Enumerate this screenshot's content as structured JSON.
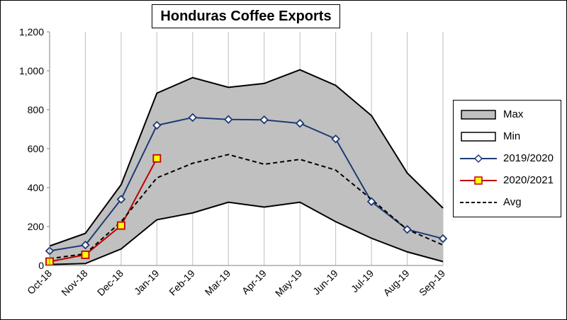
{
  "chart_data": {
    "type": "line",
    "title": "Honduras Coffee Exports",
    "categories": [
      "Oct-18",
      "Nov-18",
      "Dec-18",
      "Jan-19",
      "Feb-19",
      "Mar-19",
      "Apr-19",
      "May-19",
      "Jun-19",
      "Jul-19",
      "Aug-19",
      "Sep-19"
    ],
    "ylim": [
      0,
      1200
    ],
    "yticks": [
      0,
      200,
      400,
      600,
      800,
      1000,
      1200
    ],
    "ytick_labels": [
      "0",
      "200",
      "400",
      "600",
      "800",
      "1,000",
      "1,200"
    ],
    "grid": "vertical",
    "legend_position": "right",
    "band": {
      "max": {
        "name": "Max",
        "values": [
          100,
          165,
          415,
          885,
          965,
          915,
          935,
          1005,
          925,
          770,
          475,
          295
        ]
      },
      "min": {
        "name": "Min",
        "values": [
          5,
          10,
          85,
          235,
          270,
          325,
          300,
          325,
          225,
          140,
          70,
          20
        ]
      },
      "fill_color": "#c0c0c0"
    },
    "series": [
      {
        "name": "2019/2020",
        "style": "line-diamond",
        "color": "#1f3a73",
        "values": [
          75,
          105,
          340,
          720,
          760,
          750,
          748,
          730,
          650,
          328,
          185,
          138
        ]
      },
      {
        "name": "2020/2021",
        "style": "line-square",
        "color": "#c00000",
        "marker_fill": "#ffff00",
        "values": [
          20,
          55,
          205,
          550,
          null,
          null,
          null,
          null,
          null,
          null,
          null,
          null
        ]
      },
      {
        "name": "Avg",
        "style": "dashed",
        "color": "#000000",
        "values": [
          35,
          60,
          225,
          450,
          525,
          570,
          520,
          545,
          490,
          340,
          185,
          105
        ]
      }
    ]
  },
  "legend": {
    "items": [
      {
        "label": "Max"
      },
      {
        "label": "Min"
      },
      {
        "label": "2019/2020"
      },
      {
        "label": "2020/2021"
      },
      {
        "label": "Avg"
      }
    ]
  }
}
